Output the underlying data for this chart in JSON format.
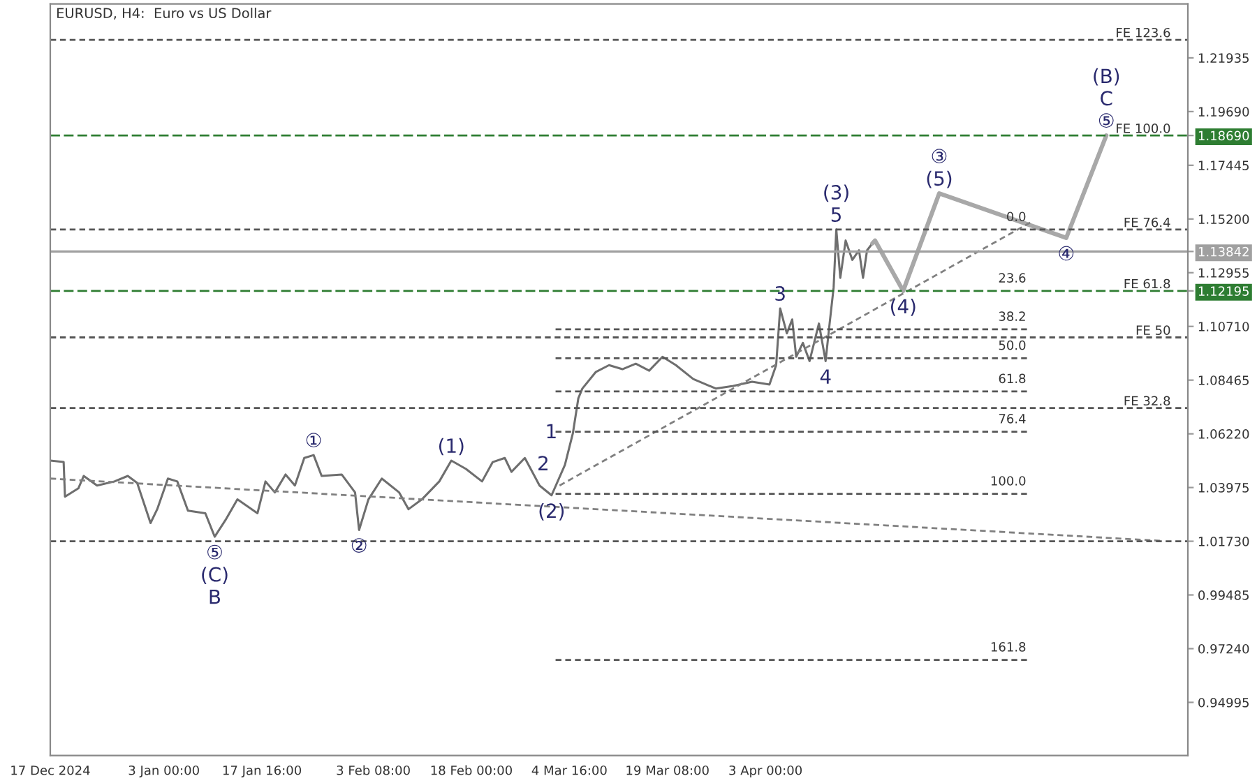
{
  "chart_data": {
    "type": "line",
    "title": "EURUSD, H4:  Euro vs US Dollar",
    "xlim": [
      "2024-12-17T00:00",
      "2025-06-05T04:48"
    ],
    "ylim": [
      0.9277,
      1.2419
    ],
    "xticks": [
      {
        "value": "2024-12-17T00:00",
        "label": "17 Dec 2024"
      },
      {
        "value": "2025-01-03T00:00",
        "label": "3 Jan 00:00"
      },
      {
        "value": "2025-01-17T16:00",
        "label": "17 Jan 16:00"
      },
      {
        "value": "2025-02-03T08:00",
        "label": "3 Feb 08:00"
      },
      {
        "value": "2025-02-18T00:00",
        "label": "18 Feb 00:00"
      },
      {
        "value": "2025-03-04T16:00",
        "label": "4 Mar 16:00"
      },
      {
        "value": "2025-03-19T08:00",
        "label": "19 Mar 08:00"
      },
      {
        "value": "2025-04-03T00:00",
        "label": "3 Apr 00:00"
      }
    ],
    "yticks": [
      {
        "value": 0.94995,
        "label": "0.94995"
      },
      {
        "value": 0.9724,
        "label": "0.97240"
      },
      {
        "value": 0.99485,
        "label": "0.99485"
      },
      {
        "value": 1.0173,
        "label": "1.01730"
      },
      {
        "value": 1.03975,
        "label": "1.03975"
      },
      {
        "value": 1.0622,
        "label": "1.06220"
      },
      {
        "value": 1.08465,
        "label": "1.08465"
      },
      {
        "value": 1.1071,
        "label": "1.10710"
      },
      {
        "value": 1.12955,
        "label": "1.12955"
      },
      {
        "value": 1.152,
        "label": "1.15200"
      },
      {
        "value": 1.17445,
        "label": "1.17445"
      },
      {
        "value": 1.1969,
        "label": "1.19690"
      },
      {
        "value": 1.21935,
        "label": "1.21935"
      },
      {
        "value": 1.1869,
        "label": "1.18690"
      },
      {
        "value": 1.13842,
        "label": "1.13842"
      },
      {
        "value": 1.12195,
        "label": "1.12195"
      }
    ],
    "grid": false,
    "line_style": "solid",
    "series": [
      {
        "color": "#6e6e6e",
        "x": [
          "2024-12-17T00:00",
          "2024-12-19T00:00",
          "2024-12-19T04:48",
          "2024-12-21T04:48",
          "2024-12-22T00:00",
          "2024-12-24T00:00",
          "2024-12-26T14:24",
          "2024-12-28T14:24",
          "2024-12-30T00:00",
          "2025-01-01T00:00",
          "2025-01-02T00:00",
          "2025-01-03T14:24",
          "2025-01-05T00:00",
          "2025-01-06T14:24",
          "2025-01-09T04:48",
          "2025-01-10T14:24",
          "2025-01-12T04:48",
          "2025-01-14T00:00",
          "2025-01-17T00:00",
          "2025-01-18T04:48",
          "2025-01-19T14:24",
          "2025-01-21T04:48",
          "2025-01-22T14:24",
          "2025-01-24T00:00",
          "2025-01-25T09:36",
          "2025-01-26T14:24",
          "2025-01-29T14:24",
          "2025-01-31T14:24",
          "2025-02-01T04:48",
          "2025-02-02T14:24",
          "2025-02-04T14:24",
          "2025-02-07T04:48",
          "2025-02-08T14:24",
          "2025-02-10T14:24",
          "2025-02-13T04:48",
          "2025-02-15T00:00",
          "2025-02-17T04:48",
          "2025-02-19T14:24",
          "2025-02-21T04:48",
          "2025-02-23T00:00",
          "2025-02-24T00:00",
          "2025-02-26T00:00",
          "2025-02-28T04:48",
          "2025-03-02T00:00",
          "2025-03-04T00:00",
          "2025-03-05T04:48",
          "2025-03-06T00:00",
          "2025-03-06T14:24",
          "2025-03-08T14:24",
          "2025-03-10T14:24",
          "2025-03-12T14:24",
          "2025-03-14T14:24",
          "2025-03-16T14:24",
          "2025-03-18T14:24",
          "2025-03-20T14:24",
          "2025-03-23T04:48",
          "2025-03-26T14:24",
          "2025-03-29T04:48",
          "2025-04-01T00:00",
          "2025-04-03T14:24",
          "2025-04-04T14:24",
          "2025-04-05T04:48",
          "2025-04-06T04:48",
          "2025-04-07T00:00",
          "2025-04-07T14:24",
          "2025-04-08T14:24",
          "2025-04-09T14:24",
          "2025-04-11T00:00",
          "2025-04-12T00:00",
          "2025-04-12T14:24",
          "2025-04-13T04:48",
          "2025-04-13T14:24",
          "2025-04-14T04:48",
          "2025-04-15T00:00",
          "2025-04-16T00:00",
          "2025-04-17T00:00",
          "2025-04-17T14:24",
          "2025-04-18T04:48",
          "2025-04-19T00:00"
        ],
        "values": [
          1.051,
          1.0504,
          1.0359,
          1.0394,
          1.0446,
          1.0406,
          1.0423,
          1.0446,
          1.0417,
          1.0249,
          1.0307,
          1.0435,
          1.0423,
          1.0301,
          1.029,
          1.0192,
          1.0261,
          1.0348,
          1.029,
          1.0423,
          1.0377,
          1.0452,
          1.0406,
          1.0521,
          1.0533,
          1.0446,
          1.0452,
          1.0377,
          1.022,
          1.0348,
          1.0435,
          1.0377,
          1.0307,
          1.0348,
          1.0423,
          1.051,
          1.0475,
          1.0423,
          1.0504,
          1.0521,
          1.0463,
          1.0521,
          1.0406,
          1.0365,
          1.0492,
          1.0626,
          1.077,
          1.0811,
          1.088,
          1.0909,
          1.0892,
          1.0915,
          1.0886,
          1.0944,
          1.0909,
          1.0851,
          1.0811,
          1.0822,
          1.084,
          1.0828,
          1.0909,
          1.1146,
          1.1042,
          1.11,
          1.0944,
          1.1002,
          1.0926,
          1.1083,
          1.0926,
          1.1083,
          1.1233,
          1.1476,
          1.1274,
          1.143,
          1.1349,
          1.1389,
          1.1274,
          1.1389,
          1.1418
        ]
      },
      {
        "color": "#a8a8a8",
        "x": [
          "2025-04-19T00:00",
          "2025-04-19T09:36",
          "2025-04-23T14:24",
          "2025-04-29T00:00",
          "2025-05-18T00:00",
          "2025-05-24T00:00"
        ],
        "values": [
          1.1418,
          1.143,
          1.12195,
          1.1627,
          1.1441,
          1.1869
        ]
      },
      {
        "color": "#808080",
        "line_style": "dotted",
        "x": [
          "2025-03-03T04:48",
          "2025-05-12T14:24"
        ],
        "values": [
          1.0406,
          1.1505
        ]
      },
      {
        "color": "#808080",
        "line_style": "dotted",
        "x": [
          "2024-12-17T00:00",
          "2025-06-01T14:24"
        ],
        "values": [
          1.0435,
          1.0174
        ]
      },
      {
        "color": "#555555",
        "line_style": "dotted",
        "x": [
          "2025-03-02T14:24",
          "2025-05-12T14:24"
        ],
        "values": [
          1.1059,
          1.1059
        ]
      },
      {
        "color": "#555555",
        "line_style": "dotted",
        "x": [
          "2025-03-02T14:24",
          "2025-05-12T14:24"
        ],
        "values": [
          1.0938,
          1.0938
        ]
      },
      {
        "color": "#555555",
        "line_style": "dotted",
        "x": [
          "2025-03-02T14:24",
          "2025-05-12T14:24"
        ],
        "values": [
          1.0799,
          1.0799
        ]
      },
      {
        "color": "#555555",
        "line_style": "dotted",
        "x": [
          "2025-03-02T14:24",
          "2025-05-12T14:24"
        ],
        "values": [
          1.0631,
          1.0631
        ]
      },
      {
        "color": "#555555",
        "line_style": "dotted",
        "x": [
          "2025-03-02T14:24",
          "2025-05-12T14:24"
        ],
        "values": [
          1.0371,
          1.0371
        ]
      },
      {
        "color": "#555555",
        "line_style": "dotted",
        "x": [
          "2025-03-02T14:24",
          "2025-05-12T14:24"
        ],
        "values": [
          0.9677,
          0.9677
        ]
      }
    ],
    "ref_lines": [
      {
        "axis": "y",
        "value": 1.2269,
        "label": "FE 123.6",
        "color": "#555555",
        "line_style": "dotted"
      },
      {
        "axis": "y",
        "value": 1.1869,
        "label": "FE 100.0",
        "color": "#2e7d32",
        "line_style": "dashed"
      },
      {
        "axis": "y",
        "value": 1.1476,
        "label": "FE 76.4",
        "color": "#555555",
        "line_style": "dotted"
      },
      {
        "axis": "y",
        "value": 1.13842,
        "label": null,
        "color": "#a0a0a0",
        "line_style": "solid"
      },
      {
        "axis": "y",
        "value": 1.12195,
        "label": "FE 61.8",
        "color": "#2e7d32",
        "line_style": "dashed"
      },
      {
        "axis": "y",
        "value": 1.1025,
        "label": "FE 50",
        "color": "#555555",
        "line_style": "dotted"
      },
      {
        "axis": "y",
        "value": 1.073,
        "label": "FE 32.8",
        "color": "#555555",
        "line_style": "dotted"
      },
      {
        "axis": "y",
        "value": 1.0173,
        "label": null,
        "color": "#555555",
        "line_style": "dotted"
      }
    ],
    "annotations": [
      {
        "text": "0.0",
        "x": "2025-05-12T14:24",
        "y": 1.1476
      },
      {
        "text": "23.6",
        "x": "2025-05-12T14:24",
        "y": 1.12195
      },
      {
        "text": "38.2",
        "x": "2025-05-12T14:24",
        "y": 1.1059
      },
      {
        "text": "50.0",
        "x": "2025-05-12T14:24",
        "y": 1.0938
      },
      {
        "text": "61.8",
        "x": "2025-05-12T14:24",
        "y": 1.0799
      },
      {
        "text": "76.4",
        "x": "2025-05-12T14:24",
        "y": 1.0631
      },
      {
        "text": "100.0",
        "x": "2025-05-12T14:24",
        "y": 1.0371
      },
      {
        "text": "161.8",
        "x": "2025-05-12T14:24",
        "y": 0.9677
      },
      {
        "text": "①",
        "x": "2025-01-25T09:36",
        "y": 1.0533
      },
      {
        "text": "②",
        "x": "2025-02-01T04:48",
        "y": 1.022
      },
      {
        "text": "⑤",
        "x": "2025-01-10T14:24",
        "y": 1.0192
      },
      {
        "text": "(C)",
        "x": "2025-01-10T14:24",
        "y": 1.0192
      },
      {
        "text": "B",
        "x": "2025-01-10T14:24",
        "y": 1.0192
      },
      {
        "text": "(1)",
        "x": "2025-02-15T00:00",
        "y": 1.051
      },
      {
        "text": "(2)",
        "x": "2025-03-02T00:00",
        "y": 1.0365
      },
      {
        "text": "1",
        "x": "2025-03-05T04:48",
        "y": 1.0626
      },
      {
        "text": "2",
        "x": "2025-03-04T00:00",
        "y": 1.0492
      },
      {
        "text": "3",
        "x": "2025-04-05T04:48",
        "y": 1.1146
      },
      {
        "text": "4",
        "x": "2025-04-12T00:00",
        "y": 1.0926
      },
      {
        "text": "5",
        "x": "2025-04-13T14:24",
        "y": 1.1476
      },
      {
        "text": "(3)",
        "x": "2025-04-13T14:24",
        "y": 1.1476
      },
      {
        "text": "(4)",
        "x": "2025-04-23T14:24",
        "y": 1.12195
      },
      {
        "text": "(5)",
        "x": "2025-04-29T00:00",
        "y": 1.1627
      },
      {
        "text": "③",
        "x": "2025-04-29T00:00",
        "y": 1.1627
      },
      {
        "text": "④",
        "x": "2025-05-18T00:00",
        "y": 1.1441
      },
      {
        "text": "⑤",
        "x": "2025-05-24T00:00",
        "y": 1.1869
      },
      {
        "text": "C",
        "x": "2025-05-24T00:00",
        "y": 1.1869
      },
      {
        "text": "(B)",
        "x": "2025-05-24T00:00",
        "y": 1.1869
      }
    ]
  }
}
